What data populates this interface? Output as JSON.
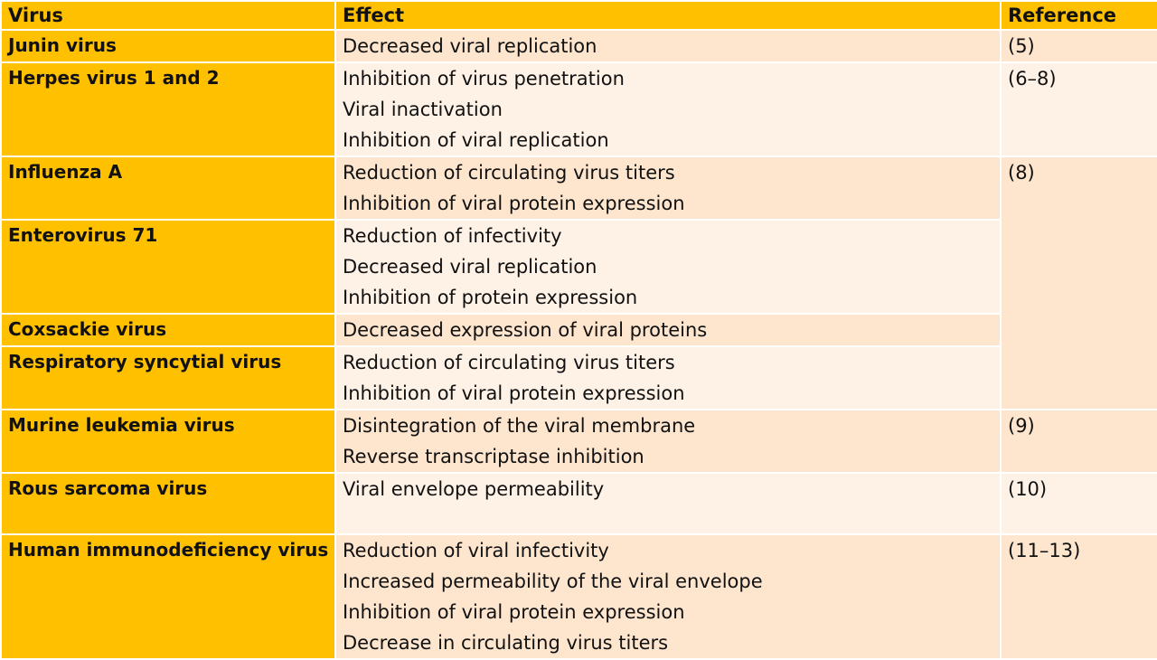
{
  "header": {
    "virus": "Virus",
    "effect": "Effect",
    "reference": "Reference"
  },
  "rows": [
    {
      "virus": "Junin virus",
      "effects": [
        "Decreased viral replication"
      ],
      "reference": "(5)"
    },
    {
      "virus": "Herpes virus 1 and 2",
      "effects": [
        "Inhibition of virus penetration",
        "Viral inactivation",
        "Inhibition of viral replication"
      ],
      "reference": "(6–8)"
    },
    {
      "virus": "Influenza A",
      "effects": [
        "Reduction of circulating virus titers",
        "Inhibition of viral protein expression"
      ],
      "reference": "(8)"
    },
    {
      "virus": "Enterovirus 71",
      "effects": [
        "Reduction of infectivity",
        "Decreased viral replication",
        "Inhibition of protein expression"
      ],
      "reference": ""
    },
    {
      "virus": "Coxsackie virus",
      "effects": [
        "Decreased expression of viral proteins"
      ],
      "reference": ""
    },
    {
      "virus": "Respiratory syncytial virus",
      "effects": [
        "Reduction of circulating virus titers",
        "Inhibition of viral protein expression"
      ],
      "reference": ""
    },
    {
      "virus": "Murine leukemia virus",
      "effects": [
        "Disintegration of the viral membrane",
        "Reverse transcriptase inhibition"
      ],
      "reference": "(9)"
    },
    {
      "virus": "Rous sarcoma virus",
      "effects": [
        "Viral envelope permeability"
      ],
      "reference": "(10)"
    },
    {
      "virus": "Human immunodeficiency virus",
      "effects": [
        "Reduction of viral infectivity",
        "Increased permeability of the viral envelope",
        "Inhibition of viral protein expression",
        "Decrease in circulating virus titers"
      ],
      "reference": "(11–13)"
    }
  ]
}
